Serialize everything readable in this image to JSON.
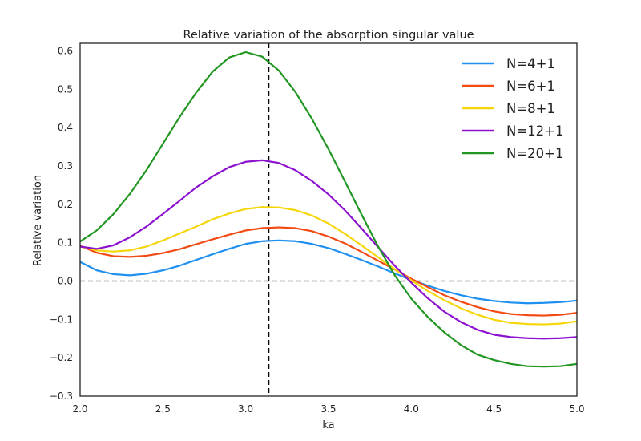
{
  "chart_data": {
    "type": "line",
    "title": "Relative variation of the absorption singular value",
    "xlabel": "ka",
    "ylabel": "Relative variation",
    "xlim": [
      2.0,
      5.0
    ],
    "ylim": [
      -0.3,
      0.62
    ],
    "xticks": [
      2.0,
      2.5,
      3.0,
      3.5,
      4.0,
      4.5,
      5.0
    ],
    "xtick_labels": [
      "2.0",
      "2.5",
      "3.0",
      "3.5",
      "4.0",
      "4.5",
      "5.0"
    ],
    "yticks": [
      -0.3,
      -0.2,
      -0.1,
      0.0,
      0.1,
      0.2,
      0.3,
      0.4,
      0.5,
      0.6
    ],
    "ytick_labels": [
      "−0.3",
      "−0.2",
      "−0.1",
      "0.0",
      "0.1",
      "0.2",
      "0.3",
      "0.4",
      "0.5",
      "0.6"
    ],
    "grid": false,
    "legend_position": "top-right",
    "reference_lines": {
      "horizontal_y": 0.0,
      "vertical_x": 3.14,
      "style": "dashed",
      "color": "#000000"
    },
    "x": [
      2.0,
      2.1,
      2.2,
      2.3,
      2.4,
      2.5,
      2.6,
      2.7,
      2.8,
      2.9,
      3.0,
      3.1,
      3.2,
      3.3,
      3.4,
      3.5,
      3.6,
      3.7,
      3.8,
      3.9,
      4.0,
      4.1,
      4.2,
      4.3,
      4.4,
      4.5,
      4.6,
      4.7,
      4.8,
      4.9,
      5.0
    ],
    "series": [
      {
        "name": "N=4+1",
        "color": "#1f8ff0",
        "values": [
          0.05,
          0.028,
          0.018,
          0.015,
          0.019,
          0.028,
          0.04,
          0.055,
          0.07,
          0.084,
          0.097,
          0.104,
          0.106,
          0.104,
          0.097,
          0.086,
          0.071,
          0.055,
          0.038,
          0.02,
          0.003,
          -0.012,
          -0.026,
          -0.037,
          -0.046,
          -0.052,
          -0.056,
          -0.058,
          -0.057,
          -0.055,
          -0.051
        ]
      },
      {
        "name": "N=6+1",
        "color": "#f24a12",
        "values": [
          0.092,
          0.074,
          0.065,
          0.063,
          0.066,
          0.073,
          0.083,
          0.096,
          0.109,
          0.121,
          0.132,
          0.138,
          0.14,
          0.138,
          0.13,
          0.116,
          0.098,
          0.076,
          0.053,
          0.03,
          0.006,
          -0.016,
          -0.037,
          -0.054,
          -0.068,
          -0.079,
          -0.086,
          -0.089,
          -0.09,
          -0.088,
          -0.083
        ]
      },
      {
        "name": "N=8+1",
        "color": "#f5d60a",
        "values": [
          0.09,
          0.08,
          0.077,
          0.08,
          0.09,
          0.106,
          0.124,
          0.142,
          0.161,
          0.176,
          0.188,
          0.193,
          0.192,
          0.185,
          0.171,
          0.15,
          0.123,
          0.093,
          0.062,
          0.031,
          0.002,
          -0.026,
          -0.05,
          -0.071,
          -0.088,
          -0.101,
          -0.109,
          -0.112,
          -0.113,
          -0.111,
          -0.105
        ]
      },
      {
        "name": "N=12+1",
        "color": "#8c12d0",
        "values": [
          0.09,
          0.084,
          0.093,
          0.114,
          0.142,
          0.175,
          0.209,
          0.244,
          0.273,
          0.297,
          0.311,
          0.315,
          0.308,
          0.289,
          0.261,
          0.226,
          0.184,
          0.137,
          0.088,
          0.04,
          -0.004,
          -0.045,
          -0.08,
          -0.107,
          -0.127,
          -0.14,
          -0.146,
          -0.149,
          -0.15,
          -0.149,
          -0.146
        ]
      },
      {
        "name": "N=20+1",
        "color": "#229622",
        "values": [
          0.103,
          0.132,
          0.174,
          0.227,
          0.289,
          0.358,
          0.427,
          0.491,
          0.546,
          0.583,
          0.597,
          0.585,
          0.549,
          0.493,
          0.423,
          0.344,
          0.259,
          0.173,
          0.09,
          0.015,
          -0.046,
          -0.094,
          -0.134,
          -0.167,
          -0.192,
          -0.206,
          -0.216,
          -0.222,
          -0.223,
          -0.222,
          -0.216
        ]
      }
    ]
  }
}
